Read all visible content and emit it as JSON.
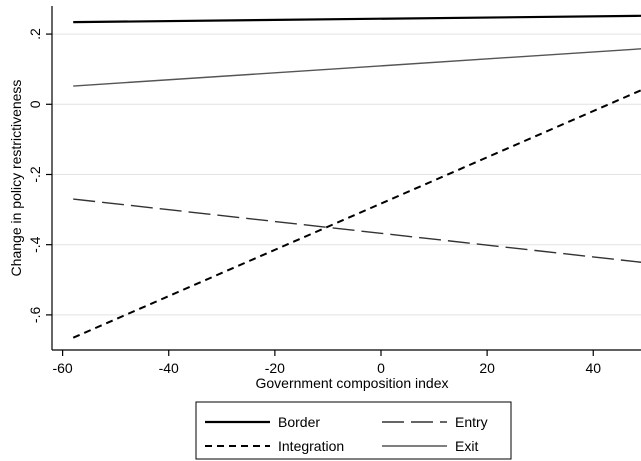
{
  "chart_data": {
    "type": "line",
    "title": "",
    "xlabel": "Government composition index",
    "ylabel": "Change in policy restrictiveness",
    "xlim": [
      -62,
      49
    ],
    "ylim": [
      -0.7,
      0.28
    ],
    "x_ticks": [
      -60,
      -40,
      -20,
      0,
      20,
      40
    ],
    "x_tick_labels": [
      "-60",
      "-40",
      "-20",
      "0",
      "20",
      "40"
    ],
    "y_ticks": [
      -0.6,
      -0.4,
      -0.2,
      0,
      0.2
    ],
    "y_tick_labels": [
      "-.6",
      "-.4",
      "-.2",
      "0",
      ".2"
    ],
    "grid": true,
    "legend_position": "bottom",
    "series": [
      {
        "name": "Border",
        "style": "solid-thick",
        "color": "#000000",
        "x": [
          -58,
          49
        ],
        "y": [
          0.234,
          0.252
        ]
      },
      {
        "name": "Entry",
        "style": "long-dash",
        "color": "#333333",
        "x": [
          -58,
          49
        ],
        "y": [
          -0.27,
          -0.45
        ]
      },
      {
        "name": "Integration",
        "style": "short-dash",
        "color": "#000000",
        "x": [
          -58,
          49
        ],
        "y": [
          -0.665,
          0.04
        ]
      },
      {
        "name": "Exit",
        "style": "solid-thin",
        "color": "#555555",
        "x": [
          -58,
          49
        ],
        "y": [
          0.052,
          0.158
        ]
      }
    ]
  }
}
